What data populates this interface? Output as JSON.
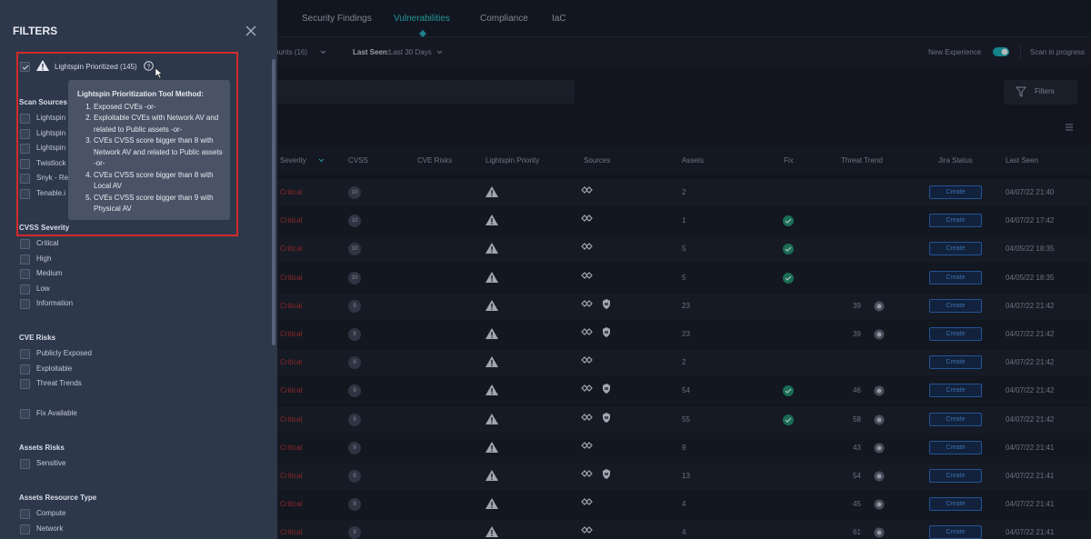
{
  "nav": {
    "tabs": [
      "Security Findings",
      "Vulnerabilities",
      "Compliance",
      "IaC"
    ],
    "active": 1
  },
  "toolbar": {
    "accounts": "ounts (16)",
    "last_seen_label": "Last Seen:",
    "last_seen_value": "Last 30 Days",
    "new_experience": "New Experience",
    "scan_status": "Scan in progress"
  },
  "search": {
    "filters_button": "Filters"
  },
  "table": {
    "headers": [
      "Severity",
      "CVSS",
      "CVE Risks",
      "Lightspin Priority",
      "Sources",
      "Assets",
      "Fix",
      "Threat Trend",
      "Jira Status",
      "Last Seen"
    ],
    "rows": [
      {
        "severity": "Critical",
        "cvss": 10,
        "sources": 1,
        "assets": 2,
        "fix": false,
        "jira": "Create",
        "last_seen": "04/07/22 21:40"
      },
      {
        "severity": "Critical",
        "cvss": 10,
        "sources": 1,
        "assets": 1,
        "fix": true,
        "jira": "Create",
        "last_seen": "04/07/22 17:42"
      },
      {
        "severity": "Critical",
        "cvss": 10,
        "sources": 1,
        "assets": 5,
        "fix": true,
        "jira": "Create",
        "last_seen": "04/05/22 18:35"
      },
      {
        "severity": "Critical",
        "cvss": 10,
        "sources": 1,
        "assets": 5,
        "fix": true,
        "jira": "Create",
        "last_seen": "04/05/22 18:35"
      },
      {
        "severity": "Critical",
        "cvss": 9,
        "sources": 2,
        "assets": 23,
        "fix": false,
        "threat_trend": 39,
        "jira": "Create",
        "last_seen": "04/07/22 21:42"
      },
      {
        "severity": "Critical",
        "cvss": 9,
        "sources": 2,
        "assets": 23,
        "fix": false,
        "threat_trend": 39,
        "jira": "Create",
        "last_seen": "04/07/22 21:42"
      },
      {
        "severity": "Critical",
        "cvss": 9,
        "sources": 1,
        "assets": 2,
        "fix": false,
        "jira": "Create",
        "last_seen": "04/07/22 21:42"
      },
      {
        "severity": "Critical",
        "cvss": 9,
        "sources": 2,
        "assets": 54,
        "fix": true,
        "threat_trend": 46,
        "jira": "Create",
        "last_seen": "04/07/22 21:42"
      },
      {
        "severity": "Critical",
        "cvss": 9,
        "sources": 2,
        "assets": 55,
        "fix": true,
        "threat_trend": 58,
        "jira": "Create",
        "last_seen": "04/07/22 21:42"
      },
      {
        "severity": "Critical",
        "cvss": 9,
        "sources": 1,
        "assets": 9,
        "fix": false,
        "threat_trend": 43,
        "jira": "Create",
        "last_seen": "04/07/22 21:41"
      },
      {
        "severity": "Critical",
        "cvss": 9,
        "sources": 2,
        "assets": 13,
        "fix": false,
        "threat_trend": 54,
        "jira": "Create",
        "last_seen": "04/07/22 21:41"
      },
      {
        "severity": "Critical",
        "cvss": 9,
        "sources": 1,
        "assets": 4,
        "fix": false,
        "threat_trend": 45,
        "jira": "Create",
        "last_seen": "04/07/22 21:41"
      },
      {
        "severity": "Critical",
        "cvss": 9,
        "sources": 1,
        "assets": 4,
        "fix": false,
        "threat_trend": 61,
        "jira": "Create",
        "last_seen": "04/07/22 21:41"
      }
    ]
  },
  "filters": {
    "title": "FILTERS",
    "prioritized": {
      "label": "Lightspin Prioritized (145)",
      "checked": true
    },
    "tooltip": {
      "title": "Lightspin Prioritization Tool Method:",
      "items": [
        "Exposed CVEs -or-",
        "Exploitable CVEs with Network AV and related to Public assets -or-",
        "CVEs CVSS score bigger than 8 with Network AV and related to Public assets -or-",
        "CVEs CVSS score bigger than 8 with Local AV",
        "CVEs CVSS score bigger than 9 with Physical AV"
      ]
    },
    "sections": [
      {
        "title": "Scan Sources",
        "options": [
          "Lightspin",
          "Lightspin",
          "Lightspin",
          "Twistlock",
          "Snyk - Re",
          "Tenable.i"
        ]
      },
      {
        "title": "CVSS Severity",
        "options": [
          "Critical",
          "High",
          "Medium",
          "Low",
          "Information"
        ]
      },
      {
        "title": "CVE Risks",
        "options": [
          "Publicly Exposed",
          "Exploitable",
          "Threat Trends"
        ]
      },
      {
        "options": [
          "Fix Available"
        ]
      },
      {
        "title": "Assets Risks",
        "options": [
          "Sensitive"
        ]
      },
      {
        "title": "Assets Resource Type",
        "options": [
          "Compute",
          "Network"
        ]
      }
    ]
  }
}
